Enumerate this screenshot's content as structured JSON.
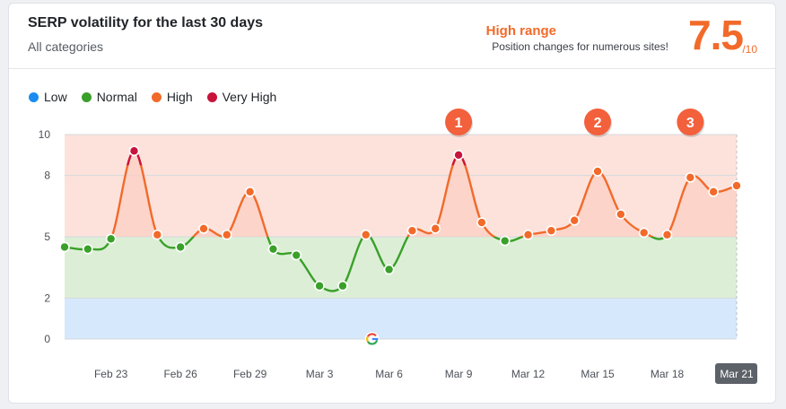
{
  "header": {
    "title": "SERP volatility for the last 30 days",
    "subtitle": "All categories",
    "range_title": "High range",
    "range_subtitle": "Position changes for numerous sites!",
    "score": "7.5",
    "score_max": "/10"
  },
  "legend": [
    {
      "label": "Low",
      "color": "#1a8cf0"
    },
    {
      "label": "Normal",
      "color": "#3aa02a"
    },
    {
      "label": "High",
      "color": "#f26a2a"
    },
    {
      "label": "Very High",
      "color": "#c8133b"
    }
  ],
  "chart_data": {
    "type": "line",
    "x": [
      "Feb 21",
      "Feb 22",
      "Feb 23",
      "Feb 24",
      "Feb 25",
      "Feb 26",
      "Feb 27",
      "Feb 28",
      "Feb 29",
      "Mar 1",
      "Mar 2",
      "Mar 3",
      "Mar 4",
      "Mar 5",
      "Mar 6",
      "Mar 7",
      "Mar 8",
      "Mar 9",
      "Mar 10",
      "Mar 11",
      "Mar 12",
      "Mar 13",
      "Mar 14",
      "Mar 15",
      "Mar 16",
      "Mar 17",
      "Mar 18",
      "Mar 19",
      "Mar 20",
      "Mar 21"
    ],
    "values": [
      4.5,
      4.4,
      4.9,
      9.2,
      5.1,
      4.5,
      5.4,
      5.1,
      7.2,
      4.4,
      4.1,
      2.6,
      2.6,
      5.1,
      3.4,
      5.3,
      5.4,
      9.0,
      5.7,
      4.8,
      5.1,
      5.3,
      5.8,
      8.2,
      6.1,
      5.2,
      5.1,
      7.9,
      7.2,
      7.5
    ],
    "tick_labels": [
      "Feb 23",
      "Feb 26",
      "Feb 29",
      "Mar 3",
      "Mar 6",
      "Mar 9",
      "Mar 12",
      "Mar 15",
      "Mar 18",
      "Mar 21"
    ],
    "y_ticks": [
      0,
      2,
      5,
      8,
      10
    ],
    "ylim": [
      0,
      10
    ],
    "bands": [
      {
        "name": "Low",
        "from": 0,
        "to": 2,
        "color": "#d6e8fb"
      },
      {
        "name": "Normal",
        "from": 2,
        "to": 5,
        "color": "#dcefd6"
      },
      {
        "name": "High",
        "from": 5,
        "to": 10,
        "color": "#fde2dc"
      }
    ],
    "markers": [
      {
        "label": "1",
        "x": "Mar 9"
      },
      {
        "label": "2",
        "x": "Mar 15"
      },
      {
        "label": "3",
        "x": "Mar 19"
      }
    ],
    "current": "Mar 21",
    "icon": "google-icon",
    "icon_x": "Mar 5",
    "colors": {
      "low": "#1a8cf0",
      "normal": "#3aa02a",
      "high": "#f26a2a",
      "very_high": "#c8133b",
      "marker": "#f2603c"
    }
  }
}
